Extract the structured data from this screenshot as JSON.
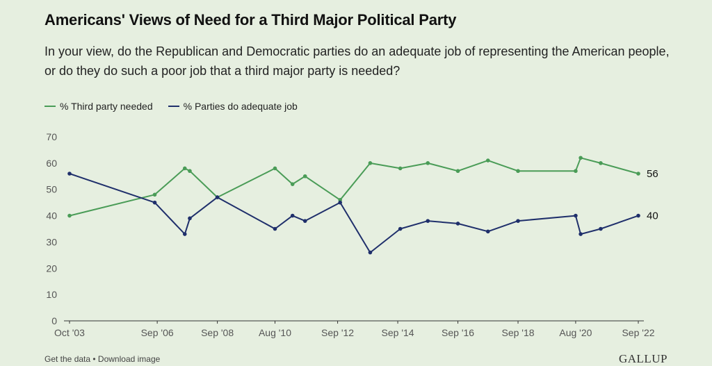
{
  "title": "Americans' Views of Need for a Third Major Political Party",
  "subtitle": "In your view, do the Republican and Democratic parties do an adequate job of representing the American people, or do they do such a poor job that a third major party is needed?",
  "footer": {
    "get_data": "Get the data",
    "separator": " • ",
    "download": "Download image"
  },
  "brand": "GALLUP",
  "chart_data": {
    "type": "line",
    "title": "Americans' Views of Need for a Third Major Political Party",
    "xlabel": "",
    "ylabel": "",
    "ylim": [
      0,
      70
    ],
    "yticks": [
      0,
      10,
      20,
      30,
      40,
      50,
      60,
      70
    ],
    "x_tick_labels": [
      "Oct '03",
      "Sep '06",
      "Sep '08",
      "Aug '10",
      "Sep '12",
      "Sep '14",
      "Sep '16",
      "Sep '18",
      "Aug '20",
      "Sep '22"
    ],
    "x_tick_dates": [
      "2003-10",
      "2006-09",
      "2008-09",
      "2010-08",
      "2012-09",
      "2014-09",
      "2016-09",
      "2018-09",
      "2020-08",
      "2022-09"
    ],
    "x_range": [
      "2003-10",
      "2022-09"
    ],
    "legend_position": "top-left",
    "grid": false,
    "series": [
      {
        "name": "% Third party needed",
        "color": "#4a9c57",
        "end_label": "56",
        "points": [
          {
            "x": "2003-10",
            "y": 40
          },
          {
            "x": "2006-08",
            "y": 48
          },
          {
            "x": "2007-08",
            "y": 58
          },
          {
            "x": "2007-10",
            "y": 57
          },
          {
            "x": "2008-09",
            "y": 47
          },
          {
            "x": "2010-08",
            "y": 58
          },
          {
            "x": "2011-03",
            "y": 52
          },
          {
            "x": "2011-08",
            "y": 55
          },
          {
            "x": "2012-10",
            "y": 46
          },
          {
            "x": "2013-10",
            "y": 60
          },
          {
            "x": "2014-10",
            "y": 58
          },
          {
            "x": "2015-09",
            "y": 60
          },
          {
            "x": "2016-09",
            "y": 57
          },
          {
            "x": "2017-09",
            "y": 61
          },
          {
            "x": "2018-09",
            "y": 57
          },
          {
            "x": "2020-08",
            "y": 57
          },
          {
            "x": "2020-10",
            "y": 62
          },
          {
            "x": "2021-06",
            "y": 60
          },
          {
            "x": "2022-09",
            "y": 56
          }
        ]
      },
      {
        "name": "% Parties do adequate job",
        "color": "#1f2f6b",
        "end_label": "40",
        "points": [
          {
            "x": "2003-10",
            "y": 56
          },
          {
            "x": "2006-08",
            "y": 45
          },
          {
            "x": "2007-08",
            "y": 33
          },
          {
            "x": "2007-10",
            "y": 39
          },
          {
            "x": "2008-09",
            "y": 47
          },
          {
            "x": "2010-08",
            "y": 35
          },
          {
            "x": "2011-03",
            "y": 40
          },
          {
            "x": "2011-08",
            "y": 38
          },
          {
            "x": "2012-10",
            "y": 45
          },
          {
            "x": "2013-10",
            "y": 26
          },
          {
            "x": "2014-10",
            "y": 35
          },
          {
            "x": "2015-09",
            "y": 38
          },
          {
            "x": "2016-09",
            "y": 37
          },
          {
            "x": "2017-09",
            "y": 34
          },
          {
            "x": "2018-09",
            "y": 38
          },
          {
            "x": "2020-08",
            "y": 40
          },
          {
            "x": "2020-10",
            "y": 33
          },
          {
            "x": "2021-06",
            "y": 35
          },
          {
            "x": "2022-09",
            "y": 40
          }
        ]
      }
    ]
  }
}
